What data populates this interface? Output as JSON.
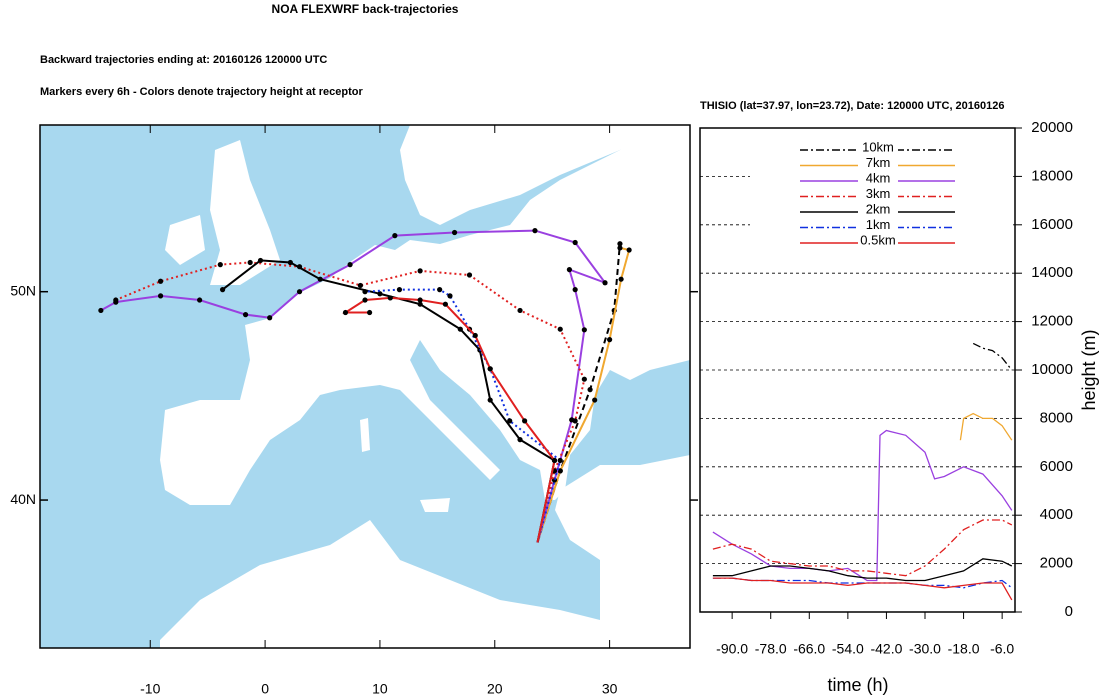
{
  "chart_data": [
    {
      "type": "map",
      "title": "NOA FLEXWRF back-trajectories",
      "subtitles": [
        "Backward trajectories ending at: 20160126  120000 UTC",
        "Markers every 6h - Colors denote trajectory height at receptor"
      ],
      "xlim": [
        -19.6,
        37
      ],
      "ylim": [
        32.9,
        58
      ],
      "xticks": [
        -10,
        0,
        10,
        20,
        30
      ],
      "yticks": [
        {
          "value": 50,
          "label": "50N"
        },
        {
          "value": 40,
          "label": "40N"
        }
      ],
      "series": [
        {
          "color": "#000000",
          "style": "dash",
          "x": [
            23.72,
            25.7,
            28.3,
            30.4,
            30.9
          ],
          "y": [
            37.97,
            41.4,
            45.3,
            49.1,
            52.3
          ]
        },
        {
          "color": "#f0a830",
          "style": "solid",
          "x": [
            23.72,
            25.7,
            28.7,
            30.0,
            31.0,
            31.7,
            30.9
          ],
          "y": [
            37.97,
            41.4,
            44.8,
            47.7,
            50.6,
            52.0,
            52.1
          ]
        },
        {
          "color": "#9a40e0",
          "style": "solid",
          "x": [
            23.72,
            25.2,
            26.7,
            27.8,
            27.0,
            26.5,
            29.6,
            27.0,
            23.5,
            16.5,
            11.3,
            7.4,
            3.0,
            0.4,
            -1.7,
            -5.7,
            -9.1,
            -13.0,
            -14.3
          ],
          "y": [
            37.97,
            40.96,
            43.85,
            48.17,
            50.1,
            51.06,
            50.43,
            52.36,
            52.93,
            52.84,
            52.69,
            51.3,
            50.0,
            48.75,
            48.9,
            49.6,
            49.8,
            49.5,
            49.1
          ]
        },
        {
          "color": "#e02020",
          "style": "dot",
          "x": [
            23.72,
            25.2,
            27.0,
            27.8,
            25.7,
            22.2,
            17.8,
            13.5,
            8.3,
            3.0,
            -1.3,
            -3.9,
            -9.1,
            -13.0
          ],
          "y": [
            37.97,
            41.4,
            43.8,
            45.8,
            48.2,
            49.1,
            50.8,
            51.0,
            50.3,
            51.2,
            51.4,
            51.3,
            50.5,
            49.6
          ]
        },
        {
          "color": "#000000",
          "style": "solid",
          "x": [
            23.72,
            25.2,
            22.2,
            19.6,
            18.7,
            17.0,
            13.5,
            10.0,
            4.8,
            2.2,
            -0.4,
            -3.7
          ],
          "y": [
            37.97,
            41.9,
            42.9,
            44.8,
            47.2,
            48.2,
            49.4,
            49.9,
            50.6,
            51.4,
            51.5,
            50.1
          ]
        },
        {
          "color": "#1030e0",
          "style": "dot",
          "x": [
            23.72,
            25.7,
            21.3,
            19.6,
            17.8,
            16.1,
            15.2,
            11.7,
            8.7
          ],
          "y": [
            37.97,
            41.9,
            43.8,
            46.3,
            48.2,
            49.8,
            50.1,
            50.1,
            50.0
          ]
        },
        {
          "color": "#e02020",
          "style": "solid",
          "x": [
            23.72,
            25.2,
            22.6,
            19.6,
            18.3,
            15.7,
            13.5,
            10.9,
            8.7,
            7.0,
            9.1
          ],
          "y": [
            37.97,
            41.9,
            43.8,
            46.3,
            47.9,
            49.4,
            49.6,
            49.7,
            49.6,
            49.0,
            49.0
          ]
        }
      ]
    },
    {
      "type": "line",
      "title": "THISIO (lat=37.97,  lon=23.72), Date: 120000 UTC, 20160126",
      "xlabel": "time (h)",
      "ylabel": "height (m)",
      "xlim": [
        -100,
        -2
      ],
      "ylim": [
        0,
        20000
      ],
      "xticks": [
        {
          "value": -90,
          "label": "-90.0"
        },
        {
          "value": -78,
          "label": "-78.0"
        },
        {
          "value": -66,
          "label": "-66.0"
        },
        {
          "value": -54,
          "label": "-54.0"
        },
        {
          "value": -42,
          "label": "-42.0"
        },
        {
          "value": -30,
          "label": "-30.0"
        },
        {
          "value": -18,
          "label": "-18.0"
        },
        {
          "value": -6,
          "label": "-6.0"
        }
      ],
      "yticks": [
        0,
        2000,
        4000,
        6000,
        8000,
        10000,
        12000,
        14000,
        16000,
        18000,
        20000
      ],
      "grid": true,
      "legend": "top-center",
      "series": [
        {
          "name": "10km",
          "color": "#000000",
          "style": "dashdot",
          "x": [
            -15,
            -12,
            -9,
            -6,
            -3
          ],
          "values": [
            11100,
            10900,
            10800,
            10500,
            10000
          ]
        },
        {
          "name": "7km",
          "color": "#f0a830",
          "style": "solid",
          "x": [
            -19,
            -18,
            -15,
            -12,
            -9,
            -6,
            -3
          ],
          "values": [
            7100,
            8000,
            8200,
            8000,
            8000,
            7700,
            7100
          ]
        },
        {
          "name": "4km",
          "color": "#9a40e0",
          "style": "solid",
          "x": [
            -96,
            -90,
            -84,
            -78,
            -72,
            -66,
            -60,
            -54,
            -48,
            -45,
            -44,
            -42,
            -36,
            -30,
            -27,
            -24,
            -18,
            -12,
            -6,
            -3
          ],
          "values": [
            3300,
            2800,
            2400,
            1900,
            1800,
            1800,
            1700,
            1800,
            1300,
            1300,
            7300,
            7500,
            7300,
            6600,
            5500,
            5600,
            6000,
            5700,
            4800,
            4200
          ]
        },
        {
          "name": "3km",
          "color": "#e02020",
          "style": "dashdot",
          "x": [
            -96,
            -90,
            -84,
            -78,
            -72,
            -66,
            -60,
            -54,
            -48,
            -42,
            -36,
            -30,
            -24,
            -18,
            -12,
            -6,
            -3
          ],
          "values": [
            2600,
            2800,
            2600,
            2100,
            2000,
            1900,
            1900,
            1700,
            1700,
            1600,
            1500,
            1900,
            2600,
            3400,
            3800,
            3800,
            3600
          ]
        },
        {
          "name": "2km",
          "color": "#000000",
          "style": "solid",
          "x": [
            -96,
            -90,
            -84,
            -78,
            -72,
            -66,
            -60,
            -54,
            -48,
            -42,
            -36,
            -30,
            -24,
            -18,
            -12,
            -6,
            -3
          ],
          "values": [
            1500,
            1500,
            1700,
            1900,
            1900,
            1800,
            1700,
            1500,
            1400,
            1400,
            1300,
            1300,
            1500,
            1700,
            2200,
            2100,
            1900
          ]
        },
        {
          "name": "1km",
          "color": "#1030e0",
          "style": "dashdot",
          "x": [
            -96,
            -90,
            -84,
            -78,
            -72,
            -66,
            -60,
            -54,
            -48,
            -42,
            -36,
            -30,
            -24,
            -18,
            -12,
            -6,
            -3
          ],
          "values": [
            1400,
            1400,
            1300,
            1300,
            1300,
            1300,
            1200,
            1200,
            1200,
            1200,
            1200,
            1100,
            1100,
            1000,
            1200,
            1300,
            1000
          ]
        },
        {
          "name": "0.5km",
          "color": "#e02020",
          "style": "solid",
          "x": [
            -96,
            -90,
            -84,
            -78,
            -72,
            -66,
            -60,
            -54,
            -48,
            -42,
            -36,
            -30,
            -24,
            -18,
            -12,
            -6,
            -3
          ],
          "values": [
            1400,
            1400,
            1300,
            1300,
            1200,
            1200,
            1200,
            1100,
            1200,
            1200,
            1200,
            1100,
            1000,
            1100,
            1200,
            1200,
            500
          ]
        }
      ]
    }
  ]
}
